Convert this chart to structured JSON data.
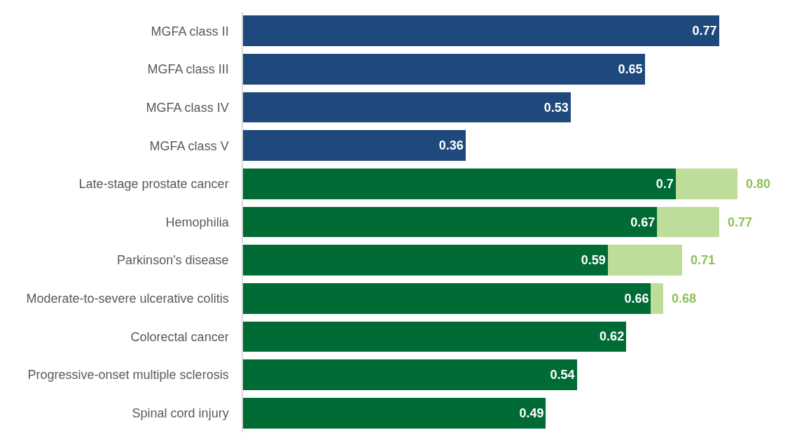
{
  "chart_data": {
    "type": "bar",
    "orientation": "horizontal",
    "stacked": true,
    "categories": [
      "MGFA class II",
      "MGFA class III",
      "MGFA class IV",
      "MGFA class V",
      "Late-stage prostate cancer",
      "Hemophilia",
      "Parkinson's disease",
      "Moderate-to-severe ulcerative colitis",
      "Colorectal cancer",
      "Progressive-onset multiple sclerosis",
      "Spinal cord injury"
    ],
    "series": [
      {
        "colors": [
          "#1f497d",
          "#1f497d",
          "#1f497d",
          "#1f497d",
          "#006b35",
          "#006b35",
          "#006b35",
          "#006b35",
          "#006b35",
          "#006b35",
          "#006b35"
        ],
        "values": [
          0.77,
          0.65,
          0.53,
          0.36,
          0.7,
          0.67,
          0.59,
          0.66,
          0.62,
          0.54,
          0.49
        ],
        "value_labels": [
          "0.77",
          "0.65",
          "0.53",
          "0.36",
          "0.7",
          "0.67",
          "0.59",
          "0.66",
          "0.62",
          "0.54",
          "0.49"
        ]
      },
      {
        "color": "#bedc9a",
        "values": [
          null,
          null,
          null,
          null,
          0.1,
          0.1,
          0.12,
          0.02,
          null,
          null,
          null
        ]
      }
    ],
    "totals": [
      null,
      null,
      null,
      null,
      "0.80",
      "0.77",
      "0.71",
      "0.68",
      null,
      null,
      null
    ],
    "tick_labels": "y"
  }
}
